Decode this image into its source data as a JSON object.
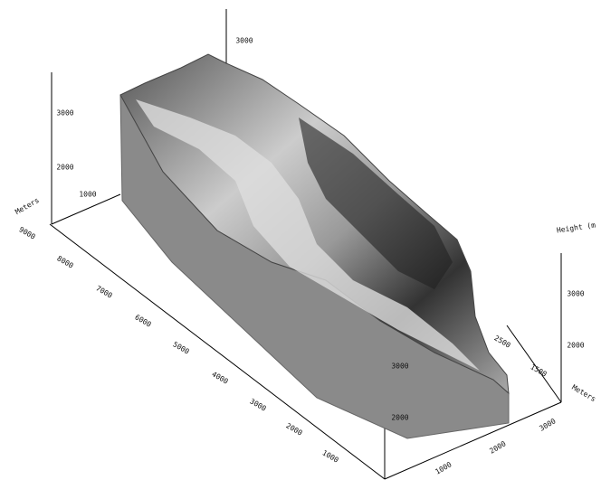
{
  "axes": {
    "left_depth": {
      "ticks": [
        "9000",
        "8000",
        "7000",
        "6000",
        "5000",
        "4000",
        "3000",
        "2000",
        "1000"
      ]
    },
    "left_height": {
      "title": "Meters",
      "ticks": [
        "3000",
        "2000",
        "1000"
      ]
    },
    "top_height": {
      "ticks": [
        "3000"
      ]
    },
    "front_height": {
      "ticks": [
        "3000",
        "2000"
      ]
    },
    "right_height": {
      "title": "Height (m",
      "ticks": [
        "3000",
        "2000"
      ]
    },
    "right_depth": {
      "title": "Meters",
      "ticks": [
        "2500",
        "1500"
      ]
    },
    "bottom_width": {
      "ticks": [
        "3000",
        "2000",
        "1000"
      ]
    }
  }
}
